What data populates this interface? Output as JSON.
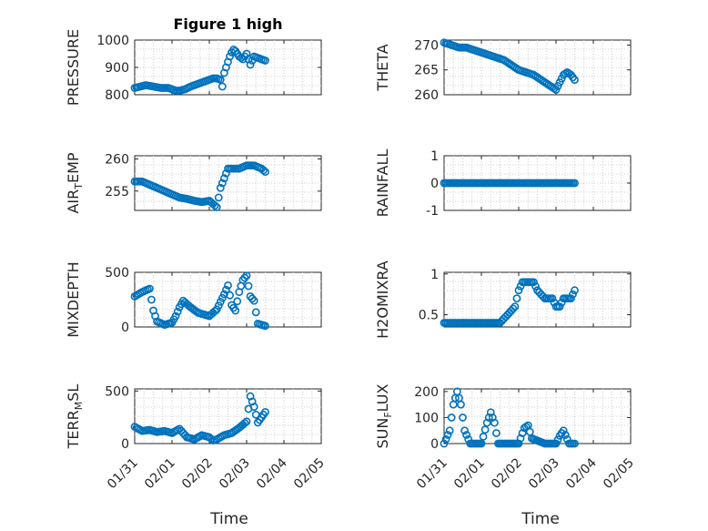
{
  "figure": {
    "xlabel": "Time"
  },
  "chart_data": [
    {
      "id": "pressure",
      "type": "scatter",
      "title": "Figure 1 high",
      "ylabel": "PRESSURE",
      "ylim": [
        800,
        1000
      ],
      "yticks": [
        800,
        900,
        1000
      ],
      "xticks": [
        "01/31",
        "02/01",
        "02/02",
        "02/03",
        "02/04",
        "02/05"
      ],
      "xlim": [
        0,
        5
      ],
      "show_xticklabels": false,
      "x": [
        0,
        0.15,
        0.3,
        0.5,
        0.7,
        0.9,
        1.0,
        1.1,
        1.2,
        1.35,
        1.5,
        1.7,
        1.9,
        2.0,
        2.1,
        2.2,
        2.3,
        2.35,
        2.4,
        2.45,
        2.5,
        2.55,
        2.6,
        2.65,
        2.7,
        2.75,
        2.8,
        2.9,
        3.0,
        3.1,
        3.2,
        3.3,
        3.4,
        3.5
      ],
      "y": [
        825,
        830,
        835,
        830,
        825,
        825,
        820,
        815,
        815,
        820,
        830,
        840,
        850,
        855,
        860,
        860,
        855,
        830,
        880,
        900,
        920,
        940,
        955,
        965,
        960,
        950,
        940,
        930,
        950,
        910,
        940,
        935,
        930,
        925
      ]
    },
    {
      "id": "theta",
      "type": "scatter",
      "title": "",
      "ylabel": "THETA",
      "ylim": [
        260,
        271
      ],
      "yticks": [
        260,
        265,
        270
      ],
      "xticks": [
        "01/31",
        "02/01",
        "02/02",
        "02/03",
        "02/04",
        "02/05"
      ],
      "xlim": [
        0,
        5
      ],
      "show_xticklabels": false,
      "x": [
        0,
        0.2,
        0.4,
        0.6,
        0.8,
        1.0,
        1.2,
        1.4,
        1.6,
        1.8,
        2.0,
        2.2,
        2.4,
        2.6,
        2.8,
        3.0,
        3.2,
        3.3,
        3.4,
        3.5
      ],
      "y": [
        270.5,
        270,
        269.5,
        269.5,
        269,
        268.5,
        268,
        267.5,
        267,
        266,
        265,
        264.5,
        264,
        263,
        262,
        261,
        264,
        264.5,
        264,
        263
      ]
    },
    {
      "id": "air_temp",
      "type": "scatter",
      "title": "",
      "ylabel_main": "AIR",
      "ylabel_sub": "T",
      "ylabel_rest": "EMP",
      "ylim": [
        252,
        260.5
      ],
      "yticks": [
        255,
        260
      ],
      "xticks": [
        "01/31",
        "02/01",
        "02/02",
        "02/03",
        "02/04",
        "02/05"
      ],
      "xlim": [
        0,
        5
      ],
      "show_xticklabels": false,
      "x": [
        0,
        0.2,
        0.4,
        0.6,
        0.8,
        1.0,
        1.2,
        1.4,
        1.6,
        1.8,
        2.0,
        2.1,
        2.2,
        2.3,
        2.4,
        2.5,
        2.6,
        2.8,
        3.0,
        3.2,
        3.4,
        3.5
      ],
      "y": [
        256.5,
        256.5,
        256,
        255.5,
        255,
        254.5,
        254,
        253.8,
        253.5,
        253.3,
        253.5,
        253,
        252.5,
        255.5,
        257,
        258.5,
        258.5,
        258.5,
        259,
        259,
        258.5,
        258
      ]
    },
    {
      "id": "rainfall",
      "type": "scatter",
      "title": "",
      "ylabel": "RAINFALL",
      "ylim": [
        -1,
        1
      ],
      "yticks": [
        -1,
        0,
        1
      ],
      "xticks": [
        "01/31",
        "02/01",
        "02/02",
        "02/03",
        "02/04",
        "02/05"
      ],
      "xlim": [
        0,
        5
      ],
      "show_xticklabels": false,
      "x": [
        0,
        0.5,
        1.0,
        1.5,
        2.0,
        2.5,
        3.0,
        3.5
      ],
      "y": [
        0,
        0,
        0,
        0,
        0,
        0,
        0,
        0
      ]
    },
    {
      "id": "mixdepth",
      "type": "scatter",
      "title": "",
      "ylabel": "MIXDEPTH",
      "ylim": [
        0,
        500
      ],
      "yticks": [
        0,
        500
      ],
      "xticks": [
        "01/31",
        "02/01",
        "02/02",
        "02/03",
        "02/04",
        "02/05"
      ],
      "xlim": [
        0,
        5
      ],
      "show_xticklabels": false,
      "x": [
        0,
        0.2,
        0.4,
        0.5,
        0.6,
        0.8,
        1.0,
        1.1,
        1.2,
        1.3,
        1.5,
        1.7,
        1.9,
        2.0,
        2.2,
        2.4,
        2.5,
        2.6,
        2.7,
        2.8,
        2.9,
        3.0,
        3.1,
        3.2,
        3.3,
        3.5
      ],
      "y": [
        280,
        320,
        350,
        150,
        50,
        20,
        40,
        100,
        180,
        240,
        180,
        130,
        110,
        100,
        160,
        300,
        380,
        200,
        150,
        320,
        430,
        470,
        280,
        240,
        30,
        10
      ]
    },
    {
      "id": "h2omixra",
      "type": "scatter",
      "title": "",
      "ylabel": "H2OMIXRA",
      "ylim": [
        0.35,
        1.02
      ],
      "yticks": [
        0.5,
        1
      ],
      "xticks": [
        "01/31",
        "02/01",
        "02/02",
        "02/03",
        "02/04",
        "02/05"
      ],
      "xlim": [
        0,
        5
      ],
      "show_xticklabels": false,
      "x": [
        0,
        0.5,
        1.0,
        1.5,
        1.7,
        1.9,
        2.0,
        2.1,
        2.2,
        2.4,
        2.5,
        2.7,
        2.9,
        3.0,
        3.1,
        3.2,
        3.4,
        3.5
      ],
      "y": [
        0.4,
        0.4,
        0.4,
        0.4,
        0.5,
        0.6,
        0.8,
        0.9,
        0.9,
        0.9,
        0.8,
        0.7,
        0.7,
        0.6,
        0.6,
        0.7,
        0.7,
        0.8
      ]
    },
    {
      "id": "terr_msl",
      "type": "scatter",
      "title": "",
      "ylabel_main": "TERR",
      "ylabel_sub": "M",
      "ylabel_rest": "SL",
      "ylim": [
        0,
        520
      ],
      "yticks": [
        0,
        500
      ],
      "xticks": [
        "01/31",
        "02/01",
        "02/02",
        "02/03",
        "02/04",
        "02/05"
      ],
      "xlim": [
        0,
        5
      ],
      "show_xticklabels": true,
      "x": [
        0,
        0.2,
        0.4,
        0.6,
        0.8,
        1.0,
        1.2,
        1.4,
        1.6,
        1.8,
        2.0,
        2.1,
        2.2,
        2.4,
        2.6,
        2.8,
        3.0,
        3.1,
        3.2,
        3.3,
        3.4,
        3.5
      ],
      "y": [
        160,
        120,
        130,
        110,
        120,
        100,
        140,
        60,
        40,
        80,
        60,
        30,
        40,
        80,
        100,
        150,
        210,
        450,
        350,
        200,
        250,
        300
      ]
    },
    {
      "id": "sun_flux",
      "type": "scatter",
      "title": "",
      "ylabel_main": "SUN",
      "ylabel_sub": "F",
      "ylabel_rest": "LUX",
      "ylim": [
        0,
        210
      ],
      "yticks": [
        0,
        100,
        200
      ],
      "xticks": [
        "01/31",
        "02/01",
        "02/02",
        "02/03",
        "02/04",
        "02/05"
      ],
      "xlim": [
        0,
        5
      ],
      "show_xticklabels": true,
      "x": [
        0,
        0.15,
        0.25,
        0.35,
        0.45,
        0.55,
        0.7,
        1.0,
        1.15,
        1.25,
        1.35,
        1.45,
        1.7,
        2.0,
        2.15,
        2.25,
        2.35,
        2.7,
        3.0,
        3.1,
        3.2,
        3.35,
        3.5
      ],
      "y": [
        0,
        50,
        150,
        200,
        150,
        50,
        0,
        0,
        80,
        120,
        80,
        0,
        0,
        0,
        60,
        70,
        20,
        0,
        0,
        30,
        50,
        0,
        0
      ]
    }
  ]
}
